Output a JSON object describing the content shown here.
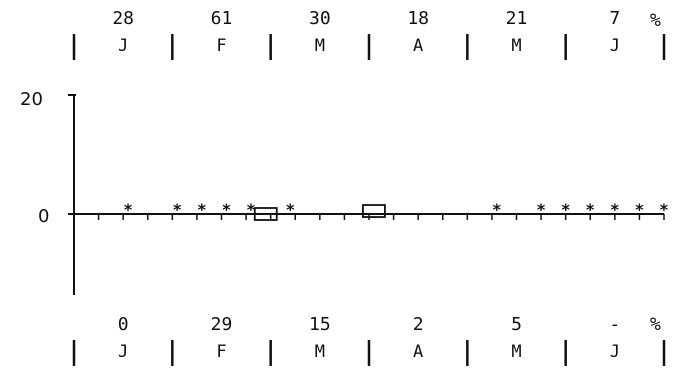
{
  "chart_data": {
    "type": "scatter",
    "months": [
      "J",
      "F",
      "M",
      "A",
      "M",
      "J"
    ],
    "top_row": {
      "values": [
        "28",
        "61",
        "30",
        "18",
        "21",
        "7"
      ],
      "unit": "%"
    },
    "bottom_row": {
      "values": [
        "0",
        "29",
        "15",
        "2",
        "5",
        "-"
      ],
      "unit": "%"
    },
    "yaxis": {
      "ticks": [
        "20",
        "0"
      ],
      "ylim": [
        -15,
        20
      ]
    },
    "ticks_per_month": 4,
    "star_markers_x": [
      0.55,
      1.05,
      1.3,
      1.55,
      1.8,
      2.2,
      4.3,
      4.75,
      5.0,
      5.25,
      5.5,
      5.75,
      6.0
    ],
    "star_markers_y": 0.8,
    "box_markers": [
      {
        "x": 1.95,
        "y": 0,
        "label": ""
      },
      {
        "x": 3.05,
        "y": 0.5,
        "label": ""
      }
    ]
  }
}
